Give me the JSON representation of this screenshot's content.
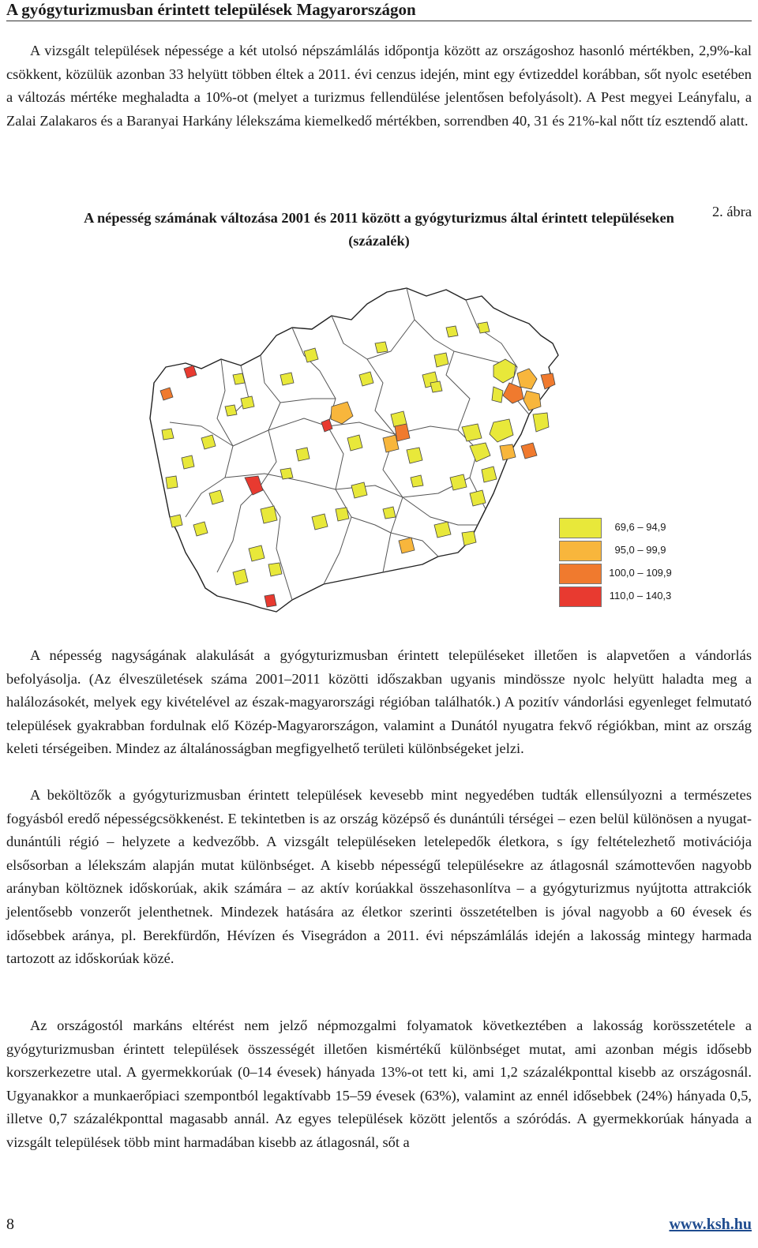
{
  "document": {
    "heading": "A gyógyturizmusban érintett települések Magyarországon",
    "paragraphs": [
      "A vizsgált települések népessége a két utolsó népszámlálás időpontja között az országoshoz hasonló mértékben, 2,9%-kal csökkent, közülük azonban 33 helyütt többen éltek a 2011. évi cenzus idején, mint egy évtizeddel korábban, sőt nyolc esetében a változás mértéke meghaladta a 10%-ot (melyet a turizmus fellendülése jelentősen befolyásolt). A Pest megyei Leányfalu, a Zalai Zalakaros és a Baranyai Harkány lélekszáma kiemelkedő mértékben, sorrendben 40, 31 és 21%-kal nőtt tíz esztendő alatt.",
      "A népesség nagyságának alakulását a gyógyturizmusban érintett településeket illetően is alapvetően a vándorlás befolyásolja. (Az élveszületések száma 2001–2011 közötti időszakban ugyanis mindössze nyolc helyütt haladta meg a halálozásokét, melyek egy kivételével az észak-magyarországi régióban találhatók.) A pozitív vándorlási egyenleget felmutató települések gyakrabban fordulnak elő Közép-Magyarországon, valamint a Dunától nyugatra fekvő régiókban, mint az ország keleti térségeiben. Mindez az általánosságban megfigyelhető területi különbségeket jelzi.",
      "A beköltözők a gyógyturizmusban érintett települések kevesebb mint negyedében tudták ellensúlyozni a természetes fogyásból eredő népességcsökkenést. E tekintetben is az ország középső és dunántúli térségei – ezen belül különösen a nyugat-dunántúli régió – helyzete a kedvezőbb. A vizsgált településeken letelepedők életkora, s így feltételezhető motivációja elsősorban a lélekszám alapján mutat különbséget. A kisebb népességű településekre az átlagosnál számottevően nagyobb arányban költöznek időskorúak, akik számára – az aktív korúakkal összehasonlítva – a gyógyturizmus nyújtotta attrakciók jelentősebb vonzerőt jelenthetnek. Mindezek hatására az életkor szerinti összetételben is jóval nagyobb a 60 évesek és idősebbek aránya, pl. Berekfürdőn, Hévízen és Visegrádon a 2011. évi népszámlálás idején a lakosság mintegy harmada tartozott az időskorúak közé.",
      "Az országostól markáns eltérést nem jelző népmozgalmi folyamatok következtében a lakosság korösszetétele a gyógyturizmusban érintett települések összességét illetően kismértékű különbséget mutat, ami azonban mégis idősebb korszerkezetre utal. A gyermekkorúak (0–14 évesek) hányada 13%-ot tett ki, ami 1,2 százalékponttal kisebb az országosnál. Ugyanakkor a munkaerőpiaci szempontból legaktívabb 15–59 évesek (63%), valamint az ennél idősebbek (24%) hányada 0,5, illetve 0,7 százalékponttal magasabb annál. Az egyes települések között jelentős a szóródás. A gyermekkorúak hányada a vizsgált települések több mint harmadában kisebb az átlagosnál, sőt a"
    ],
    "figure_number": "2. ábra",
    "figure_title": "A népesség számának változása 2001 és 2011 között a gyógyturizmus által érintett településeken (százalék)",
    "legend": [
      {
        "label": "69,6 –  94,9",
        "color": "#e8e83a"
      },
      {
        "label": "95,0 –  99,9",
        "color": "#f8b63c"
      },
      {
        "label": "100,0 – 109,9",
        "color": "#f07a2e"
      },
      {
        "label": "110,0 – 140,3",
        "color": "#e83a30"
      }
    ],
    "map_colors": {
      "outline": "#222222",
      "borders": "#555555"
    },
    "page_number": "8",
    "site": "www.ksh.hu"
  }
}
